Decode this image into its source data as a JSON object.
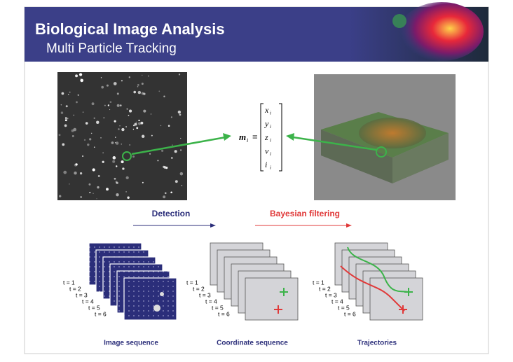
{
  "header": {
    "title": "Biological Image Analysis",
    "subtitle": "Multi Particle Tracking"
  },
  "equation": {
    "lhs": "m",
    "index": "i",
    "equals": "=",
    "entries": [
      "x",
      "y",
      "z",
      "v",
      "i"
    ]
  },
  "steps": [
    "Detection",
    "Bayesian filtering"
  ],
  "time_labels": [
    "t = 1",
    "t = 2",
    "t = 3",
    "t = 4",
    "t = 5",
    "t = 6"
  ],
  "captions": [
    "Image sequence",
    "Coordinate sequence",
    "Trajectories"
  ]
}
